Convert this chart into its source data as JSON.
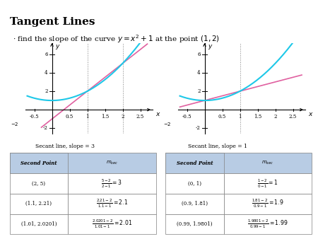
{
  "title": "Tangent Lines",
  "subtitle_bullet": "·",
  "subtitle": " find the slope of the curve $y = x^2 + 1$ at the point $(1, 2)$",
  "xlim": [
    -0.75,
    2.85
  ],
  "ylim": [
    -2.6,
    7.2
  ],
  "xticks": [
    -0.5,
    0.5,
    1.0,
    1.5,
    2.0,
    2.5
  ],
  "xtick_labels": [
    "-0.5",
    "0.5",
    "1",
    "1.5",
    "2",
    "2.5"
  ],
  "yticks": [
    2,
    4,
    6
  ],
  "ytick_neg": -2,
  "curve_color": "#1EC8E8",
  "secant_color": "#E060A0",
  "bg_color": "#FFFFFF",
  "table_header_color": "#B8CCE4",
  "secant_label1": "Secant line, slope = 3",
  "secant_label2": "Secant line, slope = 1",
  "table1_col0": [
    "(2, 5)",
    "(1.1, 2.21)",
    "(1.01, 2.0201)"
  ],
  "table1_col1": [
    "$\\frac{5-2}{2-1}=3$",
    "$\\frac{2.21-2}{1.1-1}=2.1$",
    "$\\frac{2.0201-2}{1.01-1}=2.01$"
  ],
  "table2_col0": [
    "(0, 1)",
    "(0.9, 1.81)",
    "(0.99, 1.9801)"
  ],
  "table2_col1": [
    "$\\frac{1-2}{0-1}=1$",
    "$\\frac{1.81-2}{0.9-1}=1.9$",
    "$\\frac{1.9801-2}{0.99-1}=1.99$"
  ]
}
